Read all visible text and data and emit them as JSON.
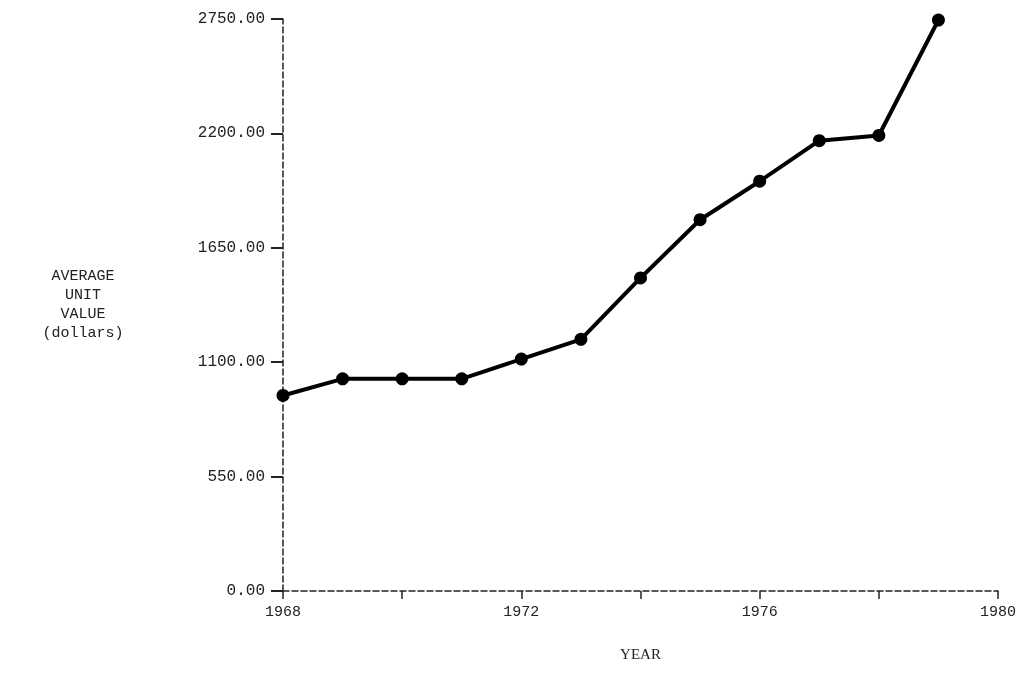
{
  "chart_data": {
    "type": "line",
    "xlabel": "YEAR",
    "ylabel": "AVERAGE\nUNIT\nVALUE\n(dollars)",
    "x": [
      1968,
      1969,
      1970,
      1971,
      1972,
      1973,
      1974,
      1975,
      1976,
      1977,
      1978,
      1979
    ],
    "series": [
      {
        "color": "#000000",
        "values": [
          940,
          1020,
          1020,
          1020,
          1115,
          1210,
          1505,
          1785,
          1970,
          2165,
          2190,
          2745
        ]
      }
    ],
    "xlim": [
      1968,
      1980
    ],
    "xticks": [
      1968,
      {
        "value": 1970,
        "label": null
      },
      1972,
      {
        "value": 1974,
        "label": null
      },
      1976,
      {
        "value": 1978,
        "label": null
      },
      1980
    ],
    "ylim": [
      0,
      2750
    ],
    "yticks": [
      {
        "value": 0,
        "label": "0.00"
      },
      {
        "value": 550,
        "label": "550.00"
      },
      {
        "value": 1100,
        "label": "1100.00"
      },
      {
        "value": 1650,
        "label": "1650.00"
      },
      {
        "value": 2200,
        "label": "2200.00"
      },
      {
        "value": 2750,
        "label": "2750.00"
      }
    ],
    "grid": false,
    "marker": "circle",
    "line_style": "solid"
  }
}
